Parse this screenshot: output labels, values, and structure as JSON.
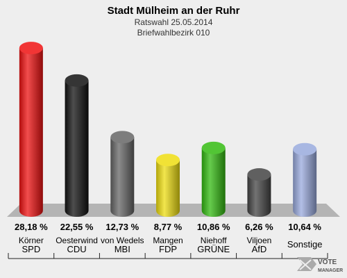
{
  "chart_data": {
    "type": "bar",
    "title": "Stadt Mülheim an der Ruhr",
    "subtitle_1": "Ratswahl 25.05.2014",
    "subtitle_2": "Briefwahlbezirk 010",
    "ylim": [
      0,
      30
    ],
    "grid": false,
    "legend": "none",
    "categories": [
      {
        "candidate": "Körner",
        "party": "SPD",
        "value": 28.18,
        "label": "28,18 %",
        "color": "#ee1111"
      },
      {
        "candidate": "Oesterwind",
        "party": "CDU",
        "value": 22.55,
        "label": "22,55 %",
        "color": "#111111"
      },
      {
        "candidate": "von Wedels",
        "party": "MBI",
        "value": 12.73,
        "label": "12,73 %",
        "color": "#666666"
      },
      {
        "candidate": "Mangen",
        "party": "FDP",
        "value": 8.77,
        "label": "8,77 %",
        "color": "#eedd11"
      },
      {
        "candidate": "Niehoff",
        "party": "GRÜNE",
        "value": 10.86,
        "label": "10,86 %",
        "color": "#33bb11"
      },
      {
        "candidate": "Viljoen",
        "party": "AfD",
        "value": 6.26,
        "label": "6,26 %",
        "color": "#444444"
      },
      {
        "candidate": "",
        "party": "Sonstige",
        "value": 10.64,
        "label": "10,64 %",
        "color": "#99aadd"
      }
    ]
  },
  "logo": {
    "line1": "VOTE",
    "line2": "MANAGER"
  }
}
